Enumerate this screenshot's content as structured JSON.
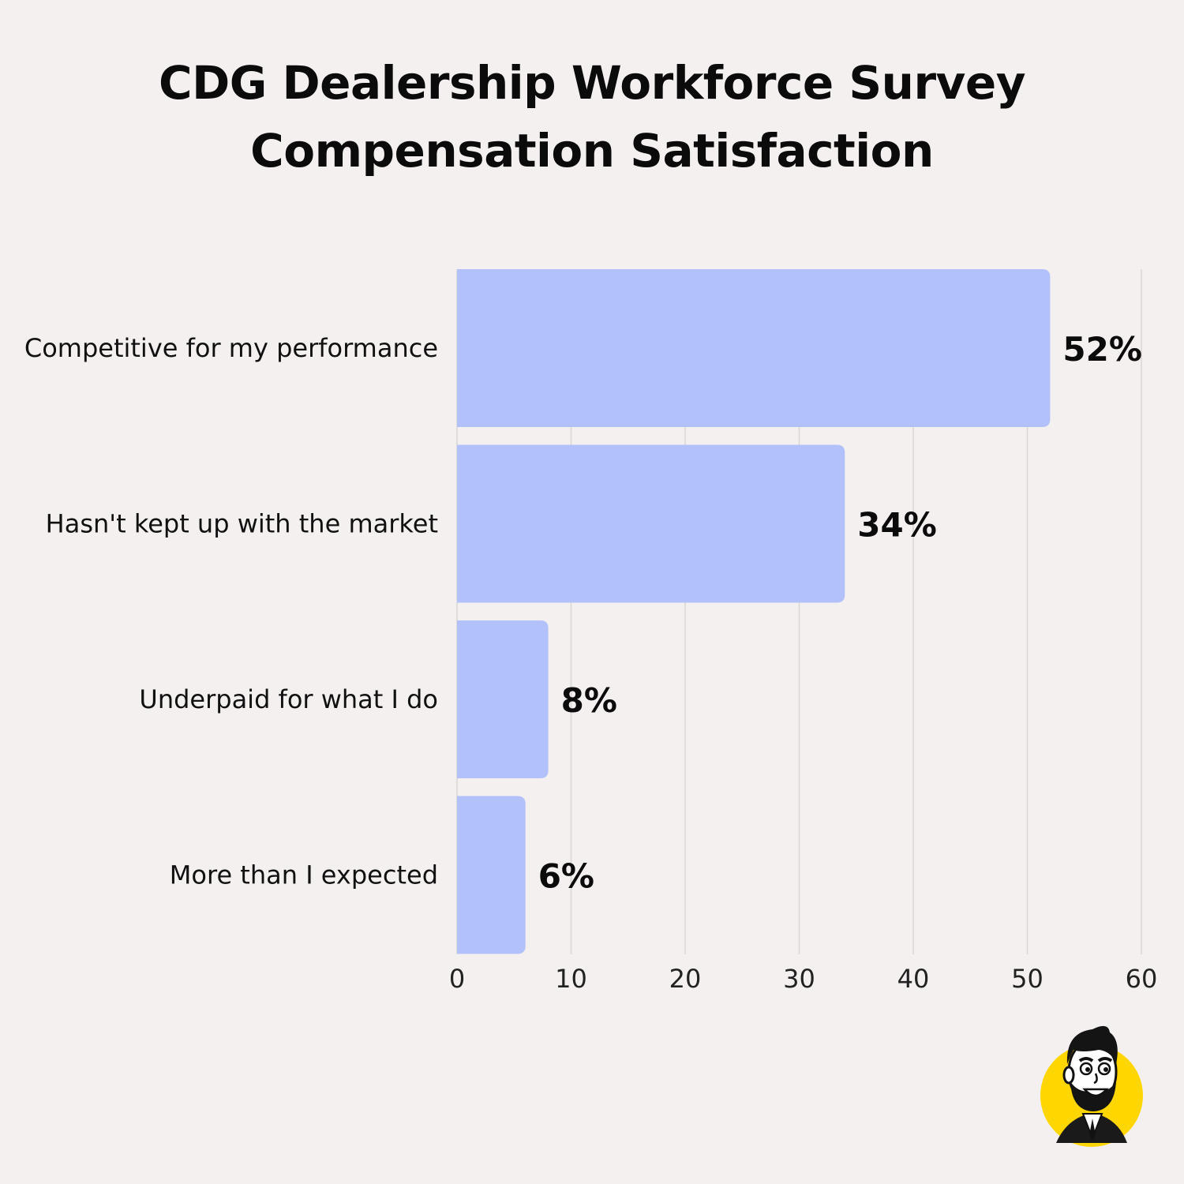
{
  "title": "CDG Dealership Workforce Survey",
  "subtitle": "Compensation Satisfaction",
  "colors": {
    "bar": "#b2c1f9",
    "background": "#f4f0ef",
    "mascot_badge": "#ffd600"
  },
  "mascot": {
    "icon": "cartoon-businessman-mascot-icon"
  },
  "chart_data": {
    "type": "bar",
    "orientation": "horizontal",
    "title": "CDG Dealership Workforce Survey",
    "subtitle": "Compensation Satisfaction",
    "categories": [
      "Competitive for my performance",
      "Hasn't kept up with the market",
      "Underpaid for what I do",
      "More than I expected"
    ],
    "values": [
      52,
      34,
      8,
      6
    ],
    "value_labels": [
      "52%",
      "34%",
      "8%",
      "6%"
    ],
    "xlim": [
      0,
      60
    ],
    "xticks": [
      0,
      10,
      20,
      30,
      40,
      50,
      60
    ],
    "xtick_labels": [
      "0",
      "10",
      "20",
      "30",
      "40",
      "50",
      "60"
    ],
    "xlabel": "",
    "ylabel": "",
    "grid": "vertical",
    "legend": "none"
  }
}
